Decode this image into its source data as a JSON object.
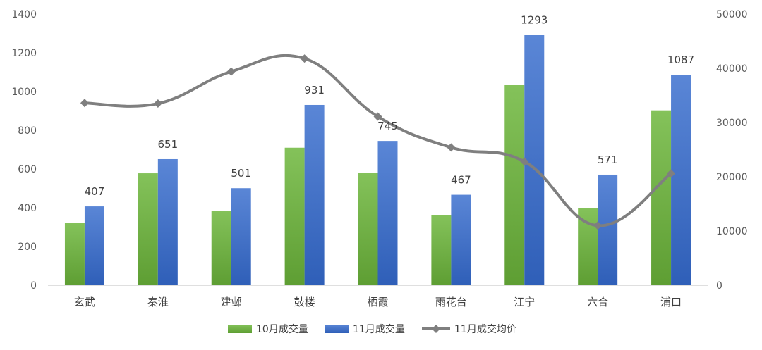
{
  "chart_data": {
    "type": "bar",
    "categories": [
      "玄武",
      "秦淮",
      "建邺",
      "鼓楼",
      "栖霞",
      "雨花台",
      "江宁",
      "六合",
      "浦口"
    ],
    "series": [
      {
        "name": "10月成交量",
        "type": "bar",
        "axis": "left",
        "color": "#70ad47",
        "values": [
          320,
          578,
          385,
          710,
          580,
          362,
          1035,
          398,
          903
        ]
      },
      {
        "name": "11月成交量",
        "type": "bar",
        "axis": "left",
        "color": "#4472c4",
        "values": [
          407,
          651,
          501,
          931,
          745,
          467,
          1293,
          571,
          1087
        ],
        "data_labels": [
          "407",
          "651",
          "501",
          "931",
          "745",
          "467",
          "1293",
          "571",
          "1087"
        ]
      },
      {
        "name": "11月成交均价",
        "type": "line",
        "axis": "right",
        "color": "#7f7f7f",
        "smooth": true,
        "marker": "diamond",
        "values": [
          33600,
          33500,
          39400,
          41800,
          31100,
          25400,
          22800,
          11000,
          20600
        ]
      }
    ],
    "y_left": {
      "ylim": [
        0,
        1400
      ],
      "ticks": [
        "0",
        "200",
        "400",
        "600",
        "800",
        "1000",
        "1200",
        "1400"
      ]
    },
    "y_right": {
      "ylim": [
        0,
        50000
      ],
      "ticks": [
        "0",
        "10000",
        "20000",
        "30000",
        "40000",
        "50000"
      ]
    },
    "grid": false,
    "legend_position": "bottom"
  }
}
